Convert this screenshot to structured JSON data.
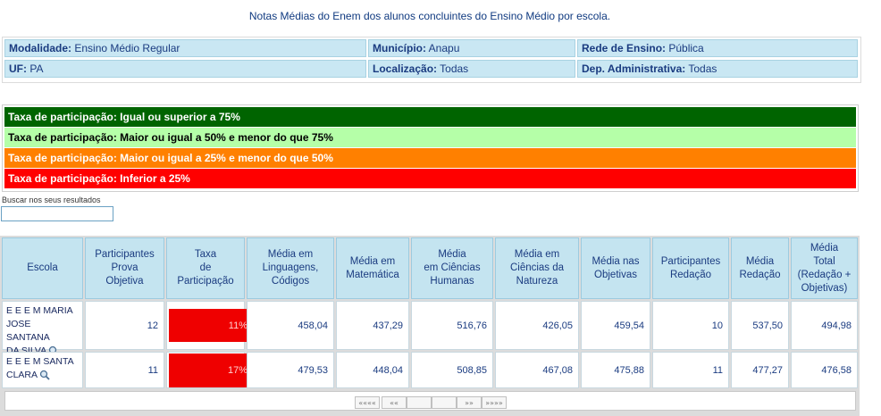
{
  "page": {
    "title": "Notas Médias do Enem dos alunos concluintes do Ensino Médio por escola."
  },
  "filters": {
    "modalidade": {
      "label": "Modalidade:",
      "value": "Ensino Médio Regular"
    },
    "municipio": {
      "label": "Município:",
      "value": "Anapu"
    },
    "rede": {
      "label": "Rede de Ensino:",
      "value": "Pública"
    },
    "uf": {
      "label": "UF:",
      "value": "PA"
    },
    "localizacao": {
      "label": "Localização:",
      "value": "Todas"
    },
    "dep": {
      "label": "Dep. Administrativa:",
      "value": "Todas"
    }
  },
  "legend": {
    "items": [
      {
        "text": "Taxa de participação: Igual ou superior a 75%",
        "color": "#006400",
        "text_color": "#ffffff"
      },
      {
        "text": "Taxa de participação: Maior ou igual a 50% e menor do que 75%",
        "color": "#b5ffa8",
        "text_color": "#000000"
      },
      {
        "text": "Taxa de participação: Maior ou igual a 25% e menor do que 50%",
        "color": "#ff8000",
        "text_color": "#ffffff"
      },
      {
        "text": "Taxa de participação: Inferior a 25%",
        "color": "#ff0000",
        "text_color": "#ffffff"
      }
    ]
  },
  "search": {
    "label": "Buscar nos seus resultados",
    "value": ""
  },
  "table": {
    "headers": {
      "escola": [
        "Escola"
      ],
      "participantes_obj": [
        "Participantes",
        "Prova",
        "Objetiva"
      ],
      "taxa": [
        "Taxa",
        "de",
        "Participação"
      ],
      "ling": [
        "Média em",
        "Linguagens,",
        "Códigos"
      ],
      "mat": [
        "Média em",
        "Matemática"
      ],
      "hum": [
        "Média",
        "em Ciências",
        "Humanas"
      ],
      "nat": [
        "Média em",
        "Ciências da",
        "Natureza"
      ],
      "obj": [
        "Média nas",
        "Objetivas"
      ],
      "part_red": [
        "Participantes",
        "Redação"
      ],
      "red": [
        "Média",
        "Redação"
      ],
      "total": [
        "Média",
        "Total",
        "(Redação +",
        "Objetivas)"
      ]
    },
    "rows": [
      {
        "school": [
          "E E E M MARIA",
          "JOSE SANTANA",
          "DA SILVA"
        ],
        "participantes": "12",
        "taxa": "11%",
        "ling": "458,04",
        "mat": "437,29",
        "hum": "516,76",
        "nat": "426,05",
        "obj": "459,54",
        "part_red": "10",
        "red": "537,50",
        "total": "494,98"
      },
      {
        "school": [
          "E E E M SANTA",
          "CLARA"
        ],
        "participantes": "11",
        "taxa": "17%",
        "ling": "479,53",
        "mat": "448,04",
        "hum": "508,85",
        "nat": "467,08",
        "obj": "475,88",
        "part_red": "11",
        "red": "477,27",
        "total": "476,58"
      }
    ]
  },
  "pager": {
    "first": "««««",
    "prev": "««",
    "next": "»»",
    "last": "»»»»"
  }
}
